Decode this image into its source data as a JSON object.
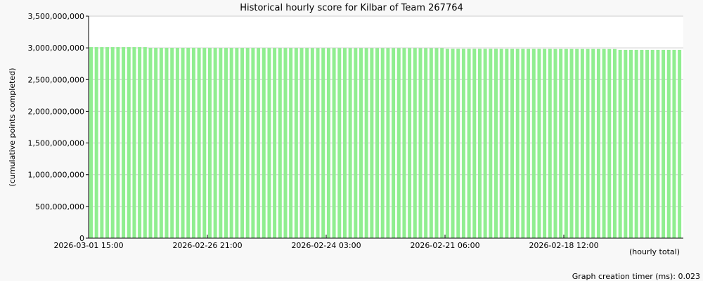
{
  "chart_data": {
    "type": "bar",
    "title": "Historical hourly score for Kilbar of Team 267764",
    "ylabel": "(cumulative points completed)",
    "xlabel": "(hourly total)",
    "ylim": [
      0,
      3500000000
    ],
    "yticks": [
      0,
      500000000,
      1000000000,
      1500000000,
      2000000000,
      2500000000,
      3000000000,
      3500000000
    ],
    "ytick_labels": [
      "0",
      "500,000,000",
      "1,000,000,000",
      "1,500,000,000",
      "2,000,000,000",
      "2,500,000,000",
      "3,000,000,000",
      "3,500,000,000"
    ],
    "xtick_labels": [
      "2026-03-01 15:00",
      "2026-02-26 21:00",
      "2026-02-24 03:00",
      "2026-02-21 06:00",
      "2026-02-18 12:00"
    ],
    "grid": true,
    "bar_color": "#90ee90",
    "values": [
      3012000000,
      3012000000,
      3012000000,
      3012000000,
      3012000000,
      3012000000,
      3012000000,
      3012000000,
      3012000000,
      3012000000,
      3012000000,
      3001000000,
      3001000000,
      3001000000,
      3001000000,
      3001000000,
      3001000000,
      3001000000,
      3001000000,
      3001000000,
      3001000000,
      3000000000,
      3000000000,
      3000000000,
      3000000000,
      3000000000,
      3000000000,
      3000000000,
      3000000000,
      3000000000,
      3000000000,
      2999000000,
      2999000000,
      2999000000,
      2999000000,
      2999000000,
      2999000000,
      2999000000,
      2999000000,
      2999000000,
      2999000000,
      2998000000,
      2998000000,
      2998000000,
      2998000000,
      2998000000,
      2998000000,
      2998000000,
      2998000000,
      2998000000,
      2998000000,
      2997000000,
      2997000000,
      2997000000,
      2997000000,
      2997000000,
      2997000000,
      2997000000,
      2997000000,
      2997000000,
      2997000000,
      2996000000,
      2996000000,
      2996000000,
      2996000000,
      2996000000,
      2985000000,
      2985000000,
      2985000000,
      2985000000,
      2985000000,
      2985000000,
      2985000000,
      2985000000,
      2985000000,
      2985000000,
      2984000000,
      2984000000,
      2984000000,
      2984000000,
      2984000000,
      2984000000,
      2984000000,
      2984000000,
      2984000000,
      2984000000,
      2983000000,
      2983000000,
      2983000000,
      2983000000,
      2983000000,
      2983000000,
      2983000000,
      2983000000,
      2983000000,
      2983000000,
      2982000000,
      2982000000,
      2969000000,
      2969000000,
      2969000000,
      2969000000,
      2969000000,
      2969000000,
      2969000000,
      2969000000,
      2969000000,
      2969000000,
      2969000000,
      2969000000
    ]
  },
  "footer": {
    "timer": "Graph creation timer (ms): 0.023"
  }
}
